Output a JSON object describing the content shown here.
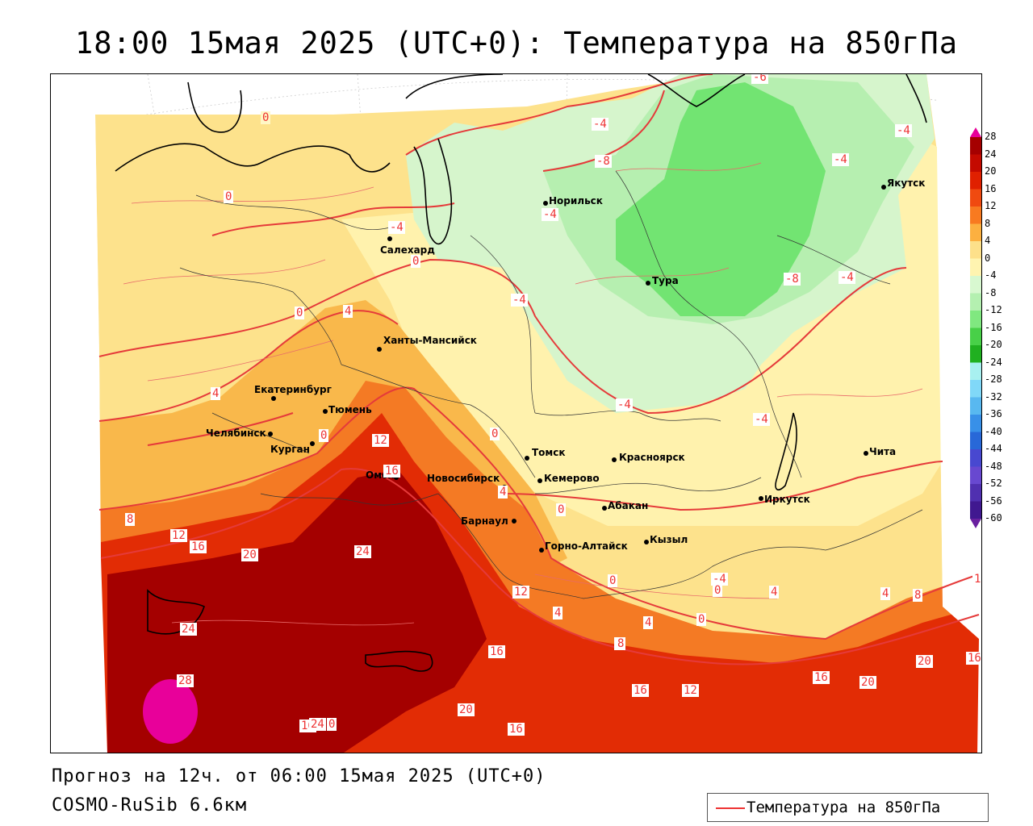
{
  "title": "18:00 15мая 2025 (UTC+0): Температура на 850гПа",
  "footer": {
    "forecast": "Прогноз на 12ч. от 06:00 15мая 2025 (UTC+0)",
    "model": "COSMO-RuSib 6.6км"
  },
  "legend": {
    "label": "Температура на 850гПа",
    "line_color": "#e33333"
  },
  "colorbar": {
    "labels": [
      "28",
      "24",
      "20",
      "16",
      "12",
      "8",
      "4",
      "0",
      "-4",
      "-8",
      "-12",
      "-16",
      "-20",
      "-24",
      "-28",
      "-32",
      "-36",
      "-40",
      "-44",
      "-48",
      "-52",
      "-56",
      "-60"
    ],
    "colors": [
      "#e8009a",
      "#a50000",
      "#c40a00",
      "#e02000",
      "#f04a10",
      "#f87a20",
      "#fcb040",
      "#fde08a",
      "#fff4b0",
      "#d8f8d0",
      "#b4f0b0",
      "#80e880",
      "#48d048",
      "#20b020",
      "#a8f0f0",
      "#80d8f8",
      "#58b8f0",
      "#3890e8",
      "#2868d8",
      "#4848d0",
      "#6848d0",
      "#5030b0",
      "#401890",
      "#6a20a0"
    ]
  },
  "cities": [
    {
      "name": "Норильск"
    },
    {
      "name": "Якутск"
    },
    {
      "name": "Салехард"
    },
    {
      "name": "Тура"
    },
    {
      "name": "Ханты-Мансийск"
    },
    {
      "name": "Екатеринбург"
    },
    {
      "name": "Тюмень"
    },
    {
      "name": "Челябинск"
    },
    {
      "name": "Курган"
    },
    {
      "name": "Омск"
    },
    {
      "name": "Новосибирск"
    },
    {
      "name": "Томск"
    },
    {
      "name": "Красноярск"
    },
    {
      "name": "Кемерово"
    },
    {
      "name": "Барнаул"
    },
    {
      "name": "Абакан"
    },
    {
      "name": "Горно-Алтайск"
    },
    {
      "name": "Кызыл"
    },
    {
      "name": "Иркутск"
    },
    {
      "name": "Чита"
    }
  ],
  "contour_labels": [
    "0",
    "-6",
    "-4",
    "-4",
    "-4",
    "0",
    "-8",
    "-4",
    "-4",
    "0",
    "4",
    "-4",
    "-8",
    "-4",
    "4",
    "0",
    "-4",
    "-4",
    "0",
    "12",
    "16",
    "0",
    "0",
    "4",
    "8",
    "12",
    "16",
    "20",
    "24",
    "-4",
    "0",
    "4",
    "0",
    "12",
    "4",
    "8",
    "4",
    "24",
    "4",
    "8",
    "0",
    "28",
    "16",
    "20",
    "1",
    "16",
    "20",
    "16",
    "12",
    "8",
    "16",
    "16",
    "20",
    "16",
    "24",
    "0"
  ]
}
